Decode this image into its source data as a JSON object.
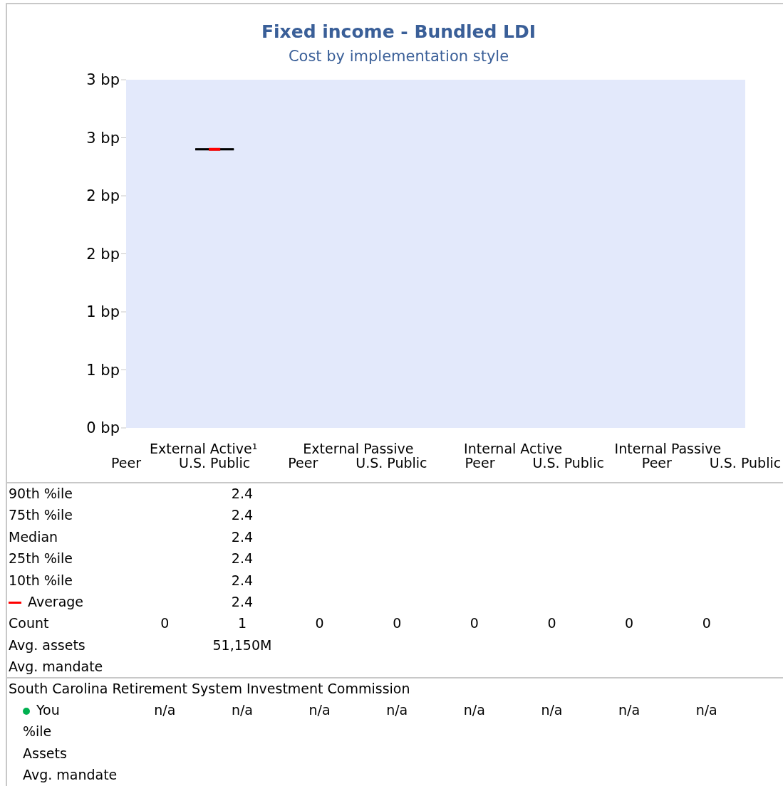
{
  "chart_data": {
    "type": "box",
    "title": "Fixed income - Bundled LDI",
    "subtitle": "Cost by implementation style",
    "categories": [
      "Peer",
      "U.S. Public",
      "Peer",
      "U.S. Public",
      "Peer",
      "U.S. Public",
      "Peer",
      "U.S. Public"
    ],
    "annotations": [
      "External Active¹",
      "External Passive",
      "Internal Active",
      "Internal Passive",
      "South Carolina Retirement System Investment Commission"
    ],
    "series": [
      {
        "color": "#000000",
        "boxes": [
          null,
          {
            "low": 2.4,
            "q1": 2.4,
            "median": 2.4,
            "q3": 2.4,
            "high": 2.4,
            "mean": 2.4
          },
          null,
          null,
          null,
          null,
          null,
          null
        ]
      },
      {
        "type": "scatter",
        "name": "90th %ile",
        "values": [
          null,
          null,
          null,
          null,
          null,
          null,
          null,
          null
        ],
        "value_labels": [
          null,
          "2.4",
          null,
          null,
          null,
          null,
          null,
          null
        ]
      },
      {
        "type": "scatter",
        "name": "75th %ile",
        "values": [
          null,
          null,
          null,
          null,
          null,
          null,
          null,
          null
        ],
        "value_labels": [
          null,
          "2.4",
          null,
          null,
          null,
          null,
          null,
          null
        ]
      },
      {
        "type": "scatter",
        "name": "Median",
        "values": [
          null,
          null,
          null,
          null,
          null,
          null,
          null,
          null
        ],
        "value_labels": [
          null,
          "2.4",
          null,
          null,
          null,
          null,
          null,
          null
        ]
      },
      {
        "type": "scatter",
        "name": "25th %ile",
        "values": [
          null,
          null,
          null,
          null,
          null,
          null,
          null,
          null
        ],
        "value_labels": [
          null,
          "2.4",
          null,
          null,
          null,
          null,
          null,
          null
        ]
      },
      {
        "type": "scatter",
        "name": "10th %ile",
        "values": [
          null,
          null,
          null,
          null,
          null,
          null,
          null,
          null
        ],
        "value_labels": [
          null,
          "2.4",
          null,
          null,
          null,
          null,
          null,
          null
        ]
      },
      {
        "type": "line",
        "name": "Average",
        "color": "#ff0000",
        "values": [
          null,
          null,
          null,
          null,
          null,
          null,
          null,
          null
        ],
        "value_labels": [
          null,
          "2.4",
          null,
          null,
          null,
          null,
          null,
          null
        ]
      },
      {
        "type": "scatter",
        "name": "Count",
        "values": [
          null,
          null,
          null,
          null,
          null,
          null,
          null,
          null
        ],
        "value_labels": [
          "0",
          "1",
          "0",
          "0",
          "0",
          "0",
          "0",
          "0"
        ]
      },
      {
        "type": "scatter",
        "name": "Avg. assets",
        "values": [
          null,
          null,
          null,
          null,
          null,
          null,
          null,
          null
        ],
        "value_labels": [
          null,
          "51,150M",
          null,
          null,
          null,
          null,
          null,
          null
        ]
      },
      {
        "type": "scatter",
        "name": "Avg. mandate",
        "values": [
          null,
          null,
          null,
          null,
          null,
          null,
          null,
          null
        ],
        "value_labels": [
          null,
          null,
          null,
          null,
          null,
          null,
          null,
          null
        ]
      },
      {
        "type": "scatter",
        "marker": "circle",
        "name": "You",
        "color": "#00b050",
        "values": [
          null,
          null,
          null,
          null,
          null,
          null,
          null,
          null
        ],
        "value_labels": [
          "n/a",
          "n/a",
          "n/a",
          "n/a",
          "n/a",
          "n/a",
          "n/a",
          "n/a"
        ]
      },
      {
        "type": "scatter",
        "name": "%ile",
        "values": [
          null,
          null,
          null,
          null,
          null,
          null,
          null,
          null
        ],
        "value_labels": [
          null,
          null,
          null,
          null,
          null,
          null,
          null,
          null
        ]
      },
      {
        "type": "scatter",
        "name": "Assets",
        "values": [
          null,
          null,
          null,
          null,
          null,
          null,
          null,
          null
        ],
        "value_labels": [
          null,
          null,
          null,
          null,
          null,
          null,
          null,
          null
        ]
      },
      {
        "type": "scatter",
        "name": "Avg. mandate",
        "values": [
          null,
          null,
          null,
          null,
          null,
          null,
          null,
          null
        ],
        "value_labels": [
          null,
          null,
          null,
          null,
          null,
          null,
          null,
          null
        ]
      }
    ],
    "ylim": [
      0,
      3
    ],
    "yticks": [
      {
        "value": 0,
        "label": "0 bp"
      },
      {
        "value": 0.5,
        "label": "1 bp"
      },
      {
        "value": 1,
        "label": "1 bp"
      },
      {
        "value": 1.5,
        "label": "2 bp"
      },
      {
        "value": 2,
        "label": "2 bp"
      },
      {
        "value": 2.5,
        "label": "3 bp"
      },
      {
        "value": 3,
        "label": "3 bp"
      }
    ],
    "grid": false
  }
}
